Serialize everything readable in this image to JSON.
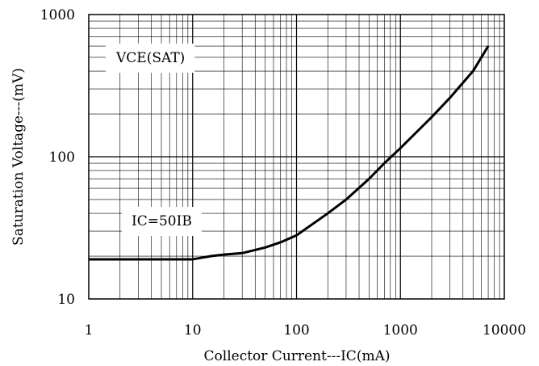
{
  "chart_data": {
    "type": "line",
    "xscale": "log",
    "yscale": "log",
    "xlim": [
      1,
      10000
    ],
    "ylim": [
      10,
      1000
    ],
    "xlabel": "Collector Current---IC(mA)",
    "ylabel": "Saturation Voltage---(mV)",
    "x_ticks": [
      "1",
      "10",
      "100",
      "1000",
      "10000"
    ],
    "y_ticks": [
      "10",
      "100",
      "1000"
    ],
    "grid": true,
    "annotations": [
      "VCE(SAT)",
      "IC=50IB"
    ],
    "series": [
      {
        "x": [
          1,
          2,
          5,
          10,
          15,
          20,
          30,
          50,
          70,
          100,
          200,
          300,
          500,
          700,
          1000,
          2000,
          3000,
          5000,
          7000
        ],
        "y": [
          19,
          19,
          19,
          19,
          20,
          20.5,
          21,
          23,
          25,
          28,
          40,
          50,
          70,
          90,
          115,
          190,
          260,
          400,
          600
        ]
      }
    ]
  }
}
